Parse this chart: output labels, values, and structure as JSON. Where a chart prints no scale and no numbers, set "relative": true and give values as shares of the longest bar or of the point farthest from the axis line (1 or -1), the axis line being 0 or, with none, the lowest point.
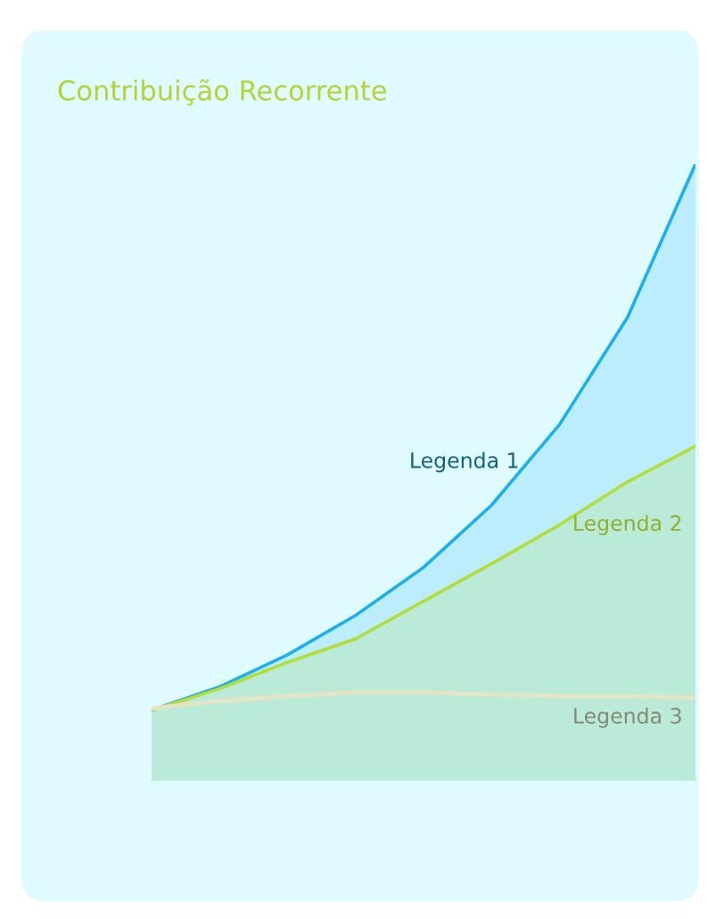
{
  "chart_data": {
    "type": "area",
    "title": "Contribuição Recorrente",
    "relative": true,
    "categories": [
      null,
      null,
      null,
      null,
      null,
      null,
      null,
      null,
      null
    ],
    "series": [
      {
        "name": "Legenda 1",
        "color": "#1cb0ec",
        "values": [
          0.113,
          0.151,
          0.203,
          0.267,
          0.345,
          0.446,
          0.577,
          0.751,
          1
        ]
      },
      {
        "name": "Legenda 2",
        "color": "#b4dc3a",
        "values": [
          0.113,
          0.148,
          0.191,
          0.229,
          0.29,
          0.351,
          0.414,
          0.484,
          0.542
        ]
      },
      {
        "name": "Legenda 3",
        "type": "line",
        "color": "#e2e4c4",
        "values": [
          0.116,
          0.128,
          0.136,
          0.142,
          0.142,
          0.139,
          0.136,
          0.136,
          0.133
        ]
      }
    ],
    "grid": false,
    "legend": false
  }
}
